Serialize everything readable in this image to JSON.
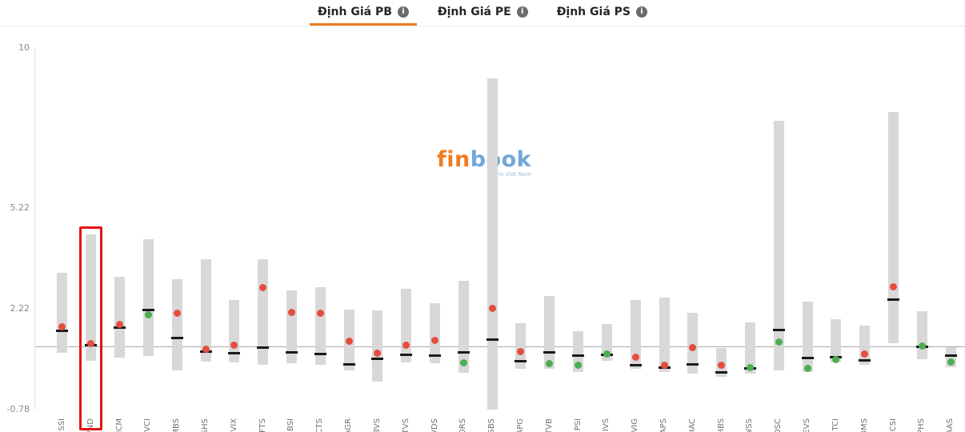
{
  "tabbar": {
    "tabs": [
      {
        "label": "Định Giá PB",
        "active": true
      },
      {
        "label": "Định Giá PE",
        "active": false
      },
      {
        "label": "Định Giá PS",
        "active": false
      }
    ],
    "info_glyph": "i"
  },
  "theme": {
    "accent_orange": "#ee7c1e",
    "tab_text": "#262626"
  },
  "watermark": {
    "text_fin": "fin",
    "text_book": "book",
    "tagline": "Fin Viet Nam",
    "color_fin": "#f07c20",
    "color_book": "#6fa8d8"
  },
  "chart_data": {
    "type": "range-bar",
    "title": "Định Giá PB",
    "xlabel": "",
    "ylabel": "",
    "ylim": [
      -0.78,
      10
    ],
    "yticks": [
      10,
      5.22,
      2.22,
      -0.78
    ],
    "reference_line": 1.1,
    "highlighted_category": "VND",
    "grid": false,
    "legend": false,
    "colors": {
      "bar": "#d8d8d8",
      "median": "#1a1a1a",
      "dot_red": "#e54e3d",
      "dot_green": "#4cae50",
      "reference_line": "#a8a8a8",
      "axis_line": "#e0e0e0",
      "highlight_box": "#e31414",
      "tick_text": "#8a8a8a",
      "category_text": "#737373"
    },
    "points": [
      {
        "ticker": "SSI",
        "low": 0.9,
        "high": 3.3,
        "median": 1.57,
        "current": 1.68,
        "current_color": "red"
      },
      {
        "ticker": "VND",
        "low": 0.67,
        "high": 4.45,
        "median": 1.15,
        "current": 1.2,
        "current_color": "red"
      },
      {
        "ticker": "HCM",
        "low": 0.77,
        "high": 3.18,
        "median": 1.67,
        "current": 1.75,
        "current_color": "red"
      },
      {
        "ticker": "VCI",
        "low": 0.83,
        "high": 4.3,
        "median": 2.2,
        "current": 2.05,
        "current_color": "green"
      },
      {
        "ticker": "MBS",
        "low": 0.38,
        "high": 3.11,
        "median": 1.35,
        "current": 2.1,
        "current_color": "red"
      },
      {
        "ticker": "SHS",
        "low": 0.65,
        "high": 3.71,
        "median": 0.95,
        "current": 1.02,
        "current_color": "red"
      },
      {
        "ticker": "VIX",
        "low": 0.63,
        "high": 2.5,
        "median": 0.9,
        "current": 1.13,
        "current_color": "red"
      },
      {
        "ticker": "FTS",
        "low": 0.55,
        "high": 3.7,
        "median": 1.06,
        "current": 2.87,
        "current_color": "red"
      },
      {
        "ticker": "BSI",
        "low": 0.6,
        "high": 2.78,
        "median": 0.93,
        "current": 2.13,
        "current_color": "red"
      },
      {
        "ticker": "CTS",
        "low": 0.55,
        "high": 2.86,
        "median": 0.88,
        "current": 2.1,
        "current_color": "red"
      },
      {
        "ticker": "AGR",
        "low": 0.4,
        "high": 2.2,
        "median": 0.56,
        "current": 1.25,
        "current_color": "red"
      },
      {
        "ticker": "BVS",
        "low": 0.05,
        "high": 2.17,
        "median": 0.74,
        "current": 0.9,
        "current_color": "red"
      },
      {
        "ticker": "TVS",
        "low": 0.62,
        "high": 2.82,
        "median": 0.85,
        "current": 1.15,
        "current_color": "red"
      },
      {
        "ticker": "VDS",
        "low": 0.6,
        "high": 2.4,
        "median": 0.82,
        "current": 1.28,
        "current_color": "red"
      },
      {
        "ticker": "ORS",
        "low": 0.33,
        "high": 3.06,
        "median": 0.93,
        "current": 0.61,
        "current_color": "green"
      },
      {
        "ticker": "SBS",
        "low": -0.78,
        "high": 9.1,
        "median": 1.3,
        "current": 2.24,
        "current_color": "red"
      },
      {
        "ticker": "APG",
        "low": 0.44,
        "high": 1.8,
        "median": 0.66,
        "current": 0.95,
        "current_color": "red"
      },
      {
        "ticker": "TVB",
        "low": 0.44,
        "high": 2.6,
        "median": 0.93,
        "current": 0.6,
        "current_color": "green"
      },
      {
        "ticker": "PSI",
        "low": 0.35,
        "high": 1.55,
        "median": 0.82,
        "current": 0.54,
        "current_color": "green"
      },
      {
        "ticker": "IVS",
        "low": 0.67,
        "high": 1.78,
        "median": 0.86,
        "current": 0.88,
        "current_color": "green"
      },
      {
        "ticker": "VIG",
        "low": 0.43,
        "high": 2.5,
        "median": 0.54,
        "current": 0.79,
        "current_color": "red"
      },
      {
        "ticker": "APS",
        "low": 0.35,
        "high": 2.56,
        "median": 0.47,
        "current": 0.54,
        "current_color": "red"
      },
      {
        "ticker": "HAC",
        "low": 0.28,
        "high": 2.1,
        "median": 0.58,
        "current": 1.07,
        "current_color": "red"
      },
      {
        "ticker": "HBS",
        "low": 0.2,
        "high": 1.05,
        "median": 0.33,
        "current": 0.54,
        "current_color": "red"
      },
      {
        "ticker": "WSS",
        "low": 0.3,
        "high": 1.83,
        "median": 0.44,
        "current": 0.47,
        "current_color": "green"
      },
      {
        "ticker": "DSC",
        "low": 0.4,
        "high": 7.84,
        "median": 1.6,
        "current": 1.23,
        "current_color": "green"
      },
      {
        "ticker": "EVS",
        "low": 0.35,
        "high": 2.45,
        "median": 0.75,
        "current": 0.46,
        "current_color": "green"
      },
      {
        "ticker": "TCI",
        "low": 0.62,
        "high": 1.92,
        "median": 0.78,
        "current": 0.72,
        "current_color": "green"
      },
      {
        "ticker": "BMS",
        "low": 0.55,
        "high": 1.72,
        "median": 0.68,
        "current": 0.88,
        "current_color": "red"
      },
      {
        "ticker": "CSI",
        "low": 1.19,
        "high": 8.09,
        "median": 2.51,
        "current": 2.89,
        "current_color": "red"
      },
      {
        "ticker": "PHS",
        "low": 0.72,
        "high": 2.15,
        "median": 1.1,
        "current": 1.12,
        "current_color": "green"
      },
      {
        "ticker": "AAS",
        "low": 0.49,
        "high": 1.07,
        "median": 0.83,
        "current": 0.65,
        "current_color": "green"
      }
    ]
  }
}
